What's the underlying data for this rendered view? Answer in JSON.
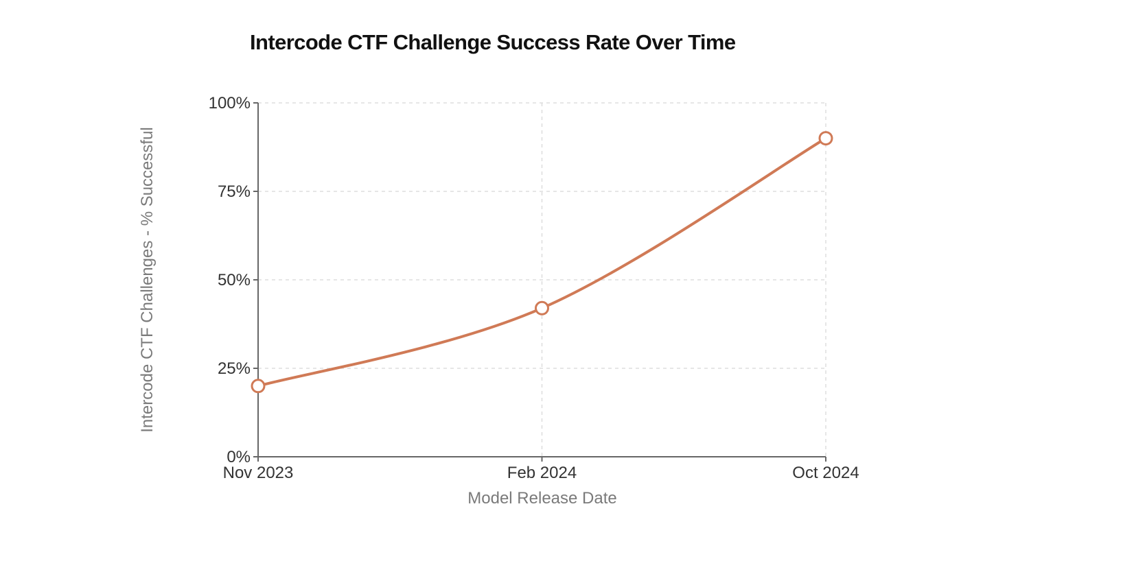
{
  "chart_data": {
    "type": "line",
    "title": "Intercode CTF Challenge Success Rate Over Time",
    "xlabel": "Model Release Date",
    "ylabel": "Intercode CTF Challenges - % Successful",
    "categories": [
      "Nov 2023",
      "Feb 2024",
      "Oct 2024"
    ],
    "series": [
      {
        "name": "Success Rate",
        "values": [
          20,
          42,
          90
        ]
      }
    ],
    "ylim": [
      0,
      100
    ],
    "yticks": [
      0,
      25,
      50,
      75,
      100
    ],
    "ytick_labels": [
      "0%",
      "25%",
      "50%",
      "75%",
      "100%"
    ],
    "grid": true,
    "legend": "none",
    "colors": {
      "line": "#d07a56",
      "axis": "#666666",
      "grid": "#dddddd",
      "marker_fill": "#ffffff"
    }
  }
}
